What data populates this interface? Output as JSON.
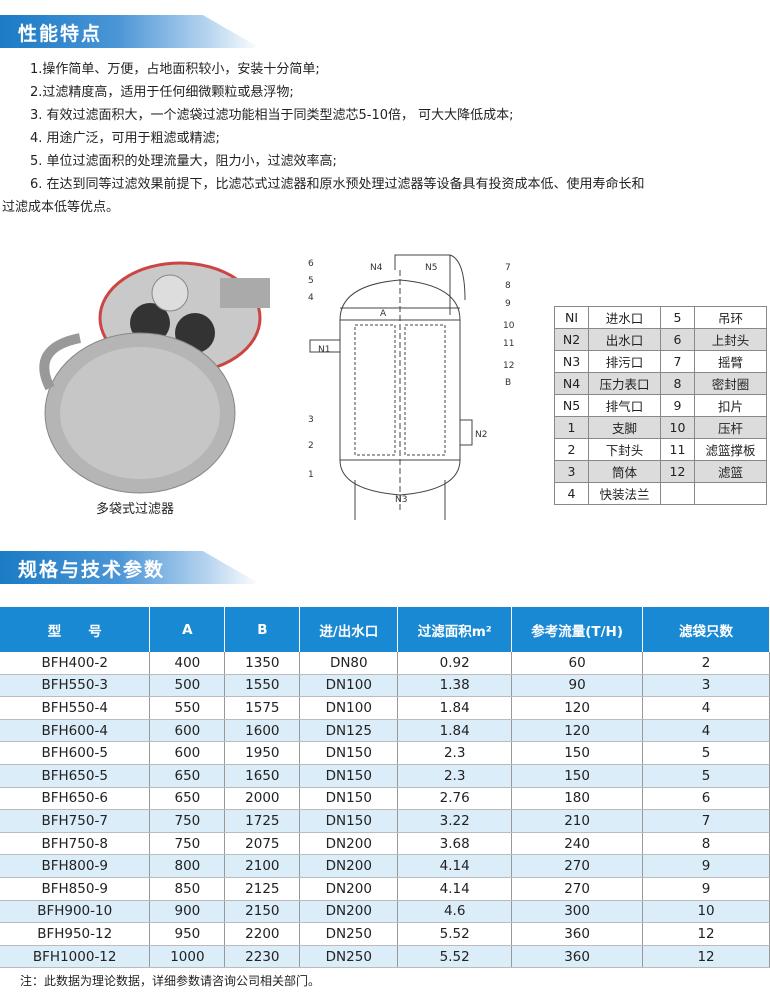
{
  "features": {
    "title": "性能特点",
    "items": [
      "1.操作简单、万便，占地面积较小，安装十分简单;",
      "2.过滤精度高，适用于任何细微颗粒或悬浮物;",
      "3. 有效过滤面积大，一个滤袋过滤功能相当于同类型滤芯5-10倍， 可大大降低成本;",
      "4. 用途广泛，可用于粗滤或精滤;",
      "5. 单位过滤面积的处理流量大，阻力小，过滤效率高;",
      "6. 在达到同等过滤效果前提下，比滤芯式过滤器和原水预处理过滤器等设备具有投资成本低、使用寿命长和",
      "过滤成本低等优点。"
    ]
  },
  "photo_caption": "多袋式过滤器",
  "diagram_labels": [
    "N4",
    "N5",
    "A",
    "N1",
    "N2",
    "N3",
    "B",
    "1",
    "2",
    "3",
    "4",
    "5",
    "6",
    "7",
    "8",
    "9",
    "10",
    "11",
    "12"
  ],
  "parts": [
    [
      "NI",
      "进水口",
      "5",
      "吊环"
    ],
    [
      "N2",
      "出水口",
      "6",
      "上封头"
    ],
    [
      "N3",
      "排污口",
      "7",
      "摇臂"
    ],
    [
      "N4",
      "压力表口",
      "8",
      "密封圈"
    ],
    [
      "N5",
      "排气口",
      "9",
      "扣片"
    ],
    [
      "1",
      "支脚",
      "10",
      "压杆"
    ],
    [
      "2",
      "下封头",
      "11",
      "滤篮撑板"
    ],
    [
      "3",
      "筒体",
      "12",
      "滤篮"
    ],
    [
      "4",
      "快装法兰",
      "",
      ""
    ]
  ],
  "specs": {
    "title": "规格与技术参数",
    "headers": [
      "型　　号",
      "A",
      "B",
      "进/出水口",
      "过滤面积m²",
      "参考流量(T/H)",
      "滤袋只数"
    ],
    "rows": [
      [
        "BFH400-2",
        "400",
        "1350",
        "DN80",
        "0.92",
        "60",
        "2"
      ],
      [
        "BFH550-3",
        "500",
        "1550",
        "DN100",
        "1.38",
        "90",
        "3"
      ],
      [
        "BFH550-4",
        "550",
        "1575",
        "DN100",
        "1.84",
        "120",
        "4"
      ],
      [
        "BFH600-4",
        "600",
        "1600",
        "DN125",
        "1.84",
        "120",
        "4"
      ],
      [
        "BFH600-5",
        "600",
        "1950",
        "DN150",
        "2.3",
        "150",
        "5"
      ],
      [
        "BFH650-5",
        "650",
        "1650",
        "DN150",
        "2.3",
        "150",
        "5"
      ],
      [
        "BFH650-6",
        "650",
        "2000",
        "DN150",
        "2.76",
        "180",
        "6"
      ],
      [
        "BFH750-7",
        "750",
        "1725",
        "DN150",
        "3.22",
        "210",
        "7"
      ],
      [
        "BFH750-8",
        "750",
        "2075",
        "DN200",
        "3.68",
        "240",
        "8"
      ],
      [
        "BFH800-9",
        "800",
        "2100",
        "DN200",
        "4.14",
        "270",
        "9"
      ],
      [
        "BFH850-9",
        "850",
        "2125",
        "DN200",
        "4.14",
        "270",
        "9"
      ],
      [
        "BFH900-10",
        "900",
        "2150",
        "DN200",
        "4.6",
        "300",
        "10"
      ],
      [
        "BFH950-12",
        "950",
        "2200",
        "DN250",
        "5.52",
        "360",
        "12"
      ],
      [
        "BFH1000-12",
        "1000",
        "2230",
        "DN250",
        "5.52",
        "360",
        "12"
      ]
    ],
    "note": "注：此数据为理论数据，详细参数请咨询公司相关部门。"
  },
  "colors": {
    "header_blue": "#1989d4",
    "row_alt": "#dbedf9"
  }
}
